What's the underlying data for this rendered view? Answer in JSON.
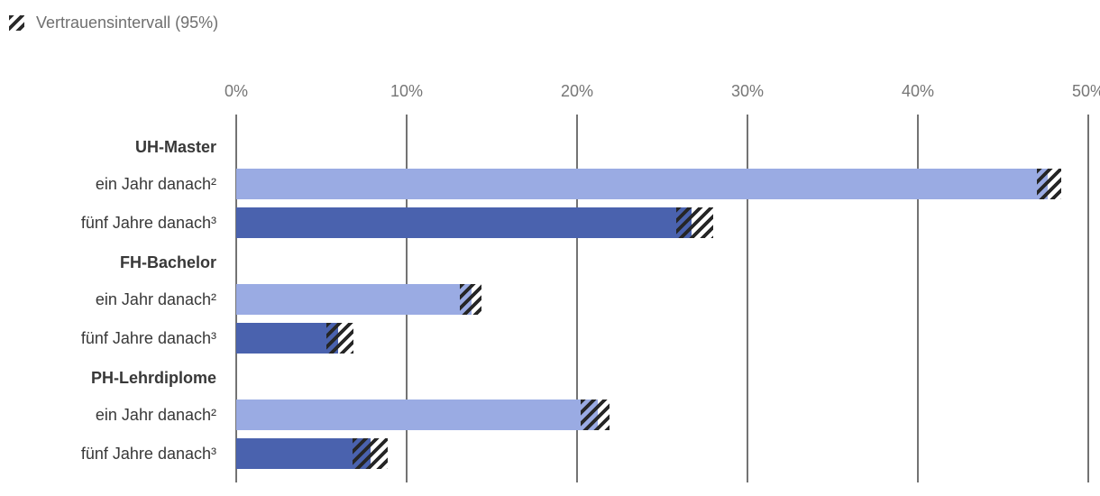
{
  "legend": {
    "icon": "ci-hatch-icon",
    "label": "Vertrauensintervall (95%)"
  },
  "colors": {
    "light": "#9aabe3",
    "dark": "#4a62ae",
    "hatch": "#262626",
    "gridline": "#737373",
    "axis_text": "#767676",
    "label_text": "#383838",
    "legend_text": "#6f6f6f"
  },
  "chart_data": {
    "type": "bar",
    "orientation": "horizontal",
    "legend": "Vertrauensintervall (95%)",
    "unit": "%",
    "xlim": [
      0,
      50
    ],
    "x_ticks": [
      0,
      10,
      20,
      30,
      40,
      50
    ],
    "x_tick_labels": [
      "0%",
      "10%",
      "20%",
      "30%",
      "40%",
      "50%"
    ],
    "axis_position": "top",
    "grid": true,
    "ci_style": "diagonal-hatch",
    "groups": [
      {
        "label": "UH-Master",
        "rows": [
          {
            "label": "ein Jahr danach²",
            "value": 47.6,
            "ci_low": 47.0,
            "ci_high": 48.4,
            "color": "light"
          },
          {
            "label": "fünf Jahre danach³",
            "value": 26.7,
            "ci_low": 25.8,
            "ci_high": 28.0,
            "color": "dark"
          }
        ]
      },
      {
        "label": "FH-Bachelor",
        "rows": [
          {
            "label": "ein Jahr danach²",
            "value": 13.8,
            "ci_low": 13.1,
            "ci_high": 14.4,
            "color": "light"
          },
          {
            "label": "fünf Jahre danach³",
            "value": 6.0,
            "ci_low": 5.3,
            "ci_high": 6.9,
            "color": "dark"
          }
        ]
      },
      {
        "label": "PH-Lehrdiplome",
        "rows": [
          {
            "label": "ein Jahr danach²",
            "value": 21.2,
            "ci_low": 20.2,
            "ci_high": 21.9,
            "color": "light"
          },
          {
            "label": "fünf Jahre danach³",
            "value": 7.9,
            "ci_low": 6.8,
            "ci_high": 8.9,
            "color": "dark"
          }
        ]
      }
    ]
  }
}
